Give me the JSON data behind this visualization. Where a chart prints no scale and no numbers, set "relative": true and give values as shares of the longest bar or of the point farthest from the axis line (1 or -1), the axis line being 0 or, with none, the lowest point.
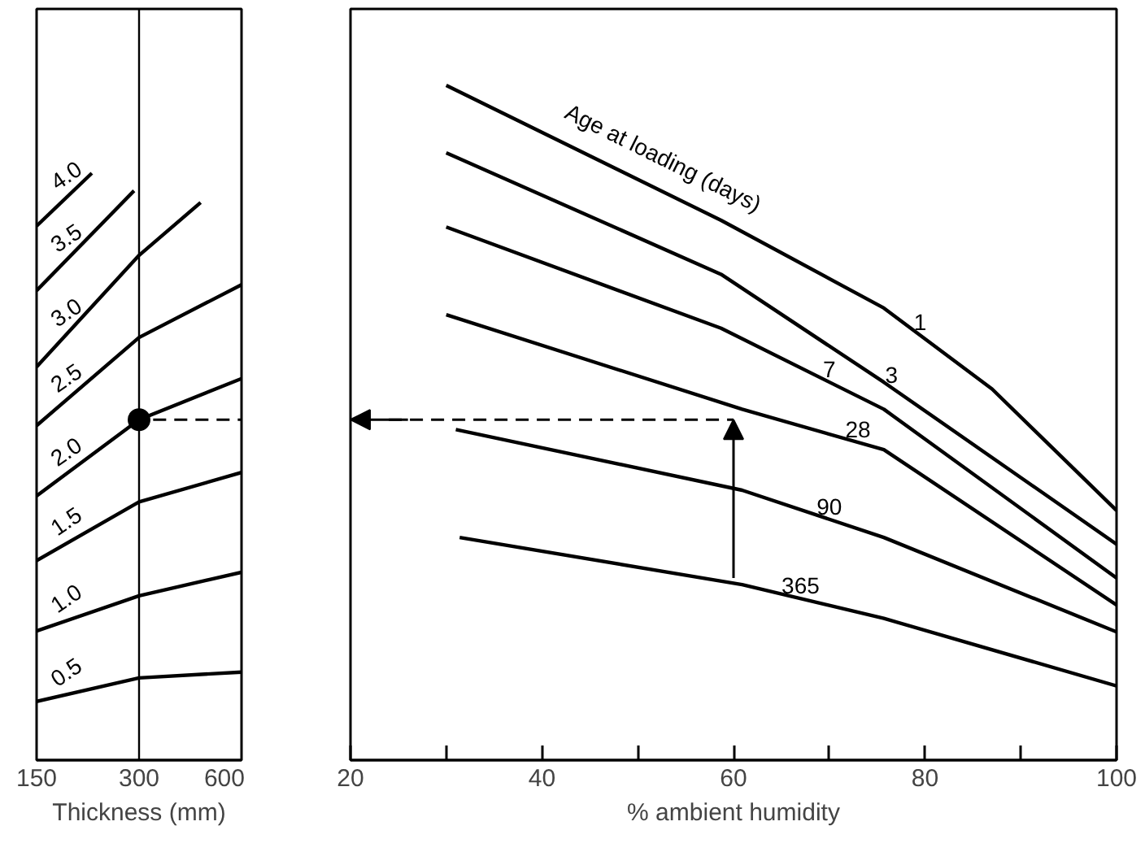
{
  "chart_data": [
    {
      "type": "line",
      "xlabel": "Thickness (mm)",
      "relative": true,
      "log": "x",
      "xlim": [
        150,
        600
      ],
      "xticks": [
        150,
        300,
        600
      ],
      "ref_lines": [
        {
          "axis": "x",
          "value": 300
        }
      ],
      "series": [
        {
          "name": "0.5",
          "color": "#000000",
          "x": [
            150,
            300,
            600
          ],
          "values": [
            0.1,
            0.14,
            0.15
          ]
        },
        {
          "name": "1.0",
          "color": "#000000",
          "x": [
            150,
            300,
            600
          ],
          "values": [
            0.22,
            0.28,
            0.32
          ]
        },
        {
          "name": "1.5",
          "color": "#000000",
          "x": [
            150,
            300,
            600
          ],
          "values": [
            0.34,
            0.44,
            0.49
          ]
        },
        {
          "name": "2.0",
          "color": "#000000",
          "x": [
            150,
            300,
            600
          ],
          "values": [
            0.45,
            0.58,
            0.65
          ]
        },
        {
          "name": "2.5",
          "color": "#000000",
          "x": [
            150,
            300,
            600
          ],
          "values": [
            0.57,
            0.72,
            0.81
          ]
        },
        {
          "name": "3.0",
          "color": "#000000",
          "x": [
            150,
            300,
            455
          ],
          "values": [
            0.67,
            0.86,
            0.95
          ]
        },
        {
          "name": "3.5",
          "color": "#000000",
          "x": [
            150,
            290
          ],
          "values": [
            0.8,
            0.97
          ]
        },
        {
          "name": "4.0",
          "color": "#000000",
          "x": [
            150,
            218
          ],
          "values": [
            0.91,
            1.0
          ]
        },
        {
          "type": "scatter",
          "marker": "circle",
          "color": "#000000",
          "x": [
            300
          ],
          "values": [
            0.58
          ]
        },
        {
          "type": "line",
          "line_style": "dashed",
          "color": "#000000",
          "x": [
            330,
            600
          ],
          "values": [
            0.58,
            0.58
          ]
        }
      ]
    },
    {
      "type": "line",
      "xlabel": "% ambient humidity",
      "relative": true,
      "xlim": [
        20,
        100
      ],
      "xticks": [
        20,
        {
          "value": 30,
          "label": null
        },
        40,
        {
          "value": 50,
          "label": null
        },
        60,
        {
          "value": 70,
          "label": null
        },
        80,
        {
          "value": 90,
          "label": null
        },
        100
      ],
      "annotations": [
        "Age at loading (days)"
      ],
      "series": [
        {
          "name": "1",
          "color": "#000000",
          "x": [
            30,
            58.7,
            75.7,
            87,
            100
          ],
          "values": [
            1.0,
            0.8,
            0.67,
            0.55,
            0.37
          ]
        },
        {
          "name": "3",
          "color": "#000000",
          "x": [
            30,
            58.7,
            75.7,
            100
          ],
          "values": [
            0.9,
            0.72,
            0.56,
            0.32
          ]
        },
        {
          "name": "7",
          "color": "#000000",
          "x": [
            30,
            58.7,
            75.7,
            100
          ],
          "values": [
            0.79,
            0.64,
            0.52,
            0.27
          ]
        },
        {
          "name": "28",
          "color": "#000000",
          "x": [
            30,
            60.9,
            75.7,
            100
          ],
          "values": [
            0.66,
            0.52,
            0.46,
            0.23
          ]
        },
        {
          "name": "90",
          "color": "#000000",
          "x": [
            31,
            60.9,
            75.7,
            100
          ],
          "values": [
            0.49,
            0.4,
            0.33,
            0.19
          ]
        },
        {
          "name": "365",
          "color": "#000000",
          "x": [
            31.4,
            60.9,
            75.7,
            100
          ],
          "values": [
            0.33,
            0.26,
            0.21,
            0.11
          ]
        }
      ]
    }
  ]
}
